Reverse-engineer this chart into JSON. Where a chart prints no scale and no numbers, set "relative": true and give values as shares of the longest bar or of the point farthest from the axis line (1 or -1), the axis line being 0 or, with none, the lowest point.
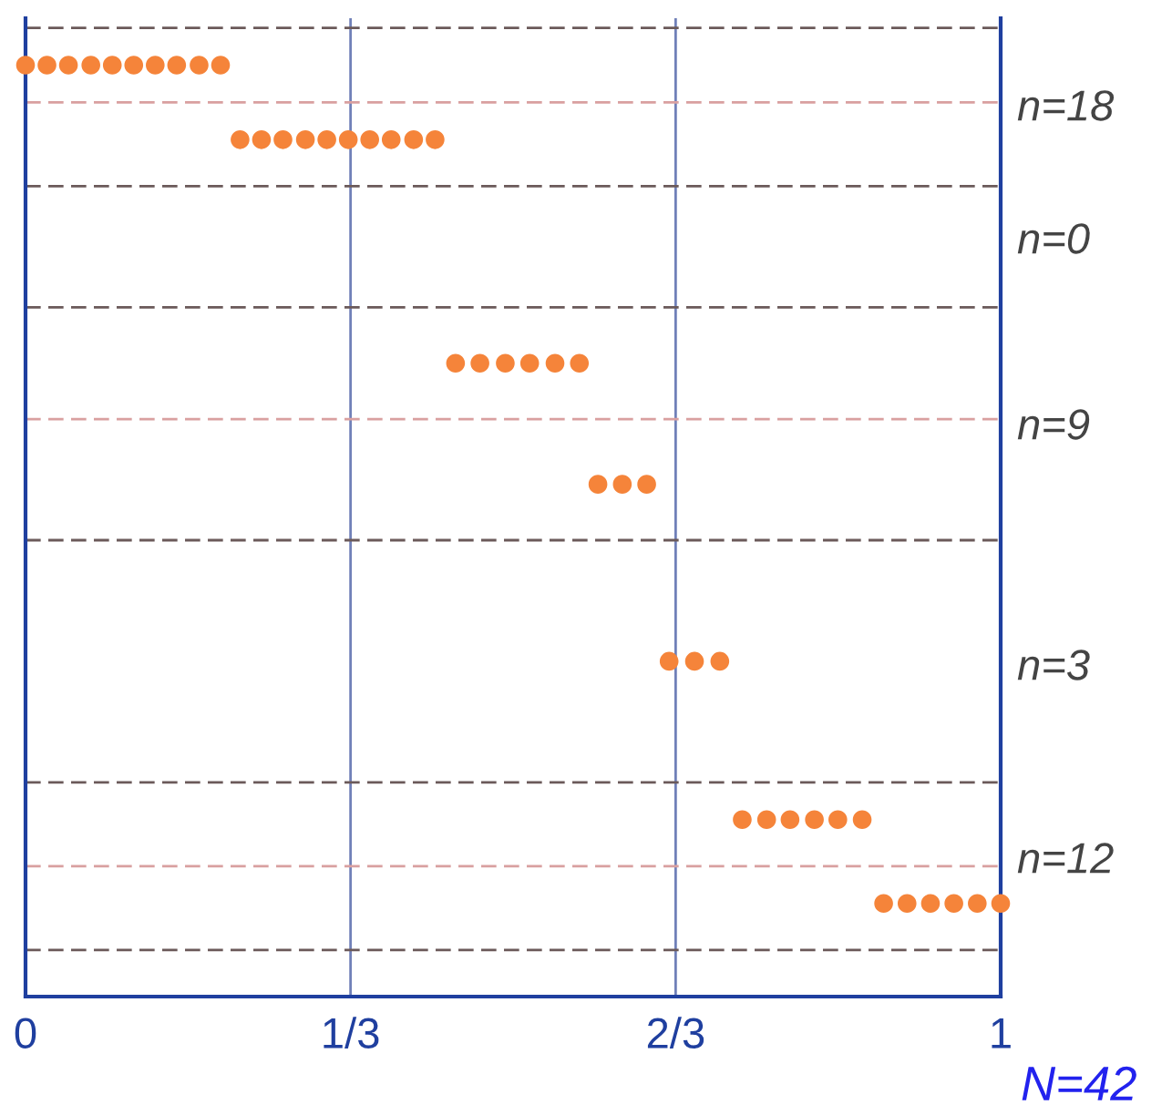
{
  "chart_data": {
    "type": "scatter",
    "relative": true,
    "grid": "x",
    "marker": "circle",
    "xlim": [
      0,
      1
    ],
    "xticks": [
      0,
      {
        "value": 0.3333,
        "label": "1/3"
      },
      {
        "value": 0.6667,
        "label": "2/3"
      },
      1
    ],
    "series": [
      {
        "color": "#f5843a",
        "x": [
          0,
          0.022,
          0.044,
          0.067,
          0.089,
          0.111,
          0.133,
          0.155,
          0.178,
          0.2,
          0.22,
          0.242,
          0.264,
          0.287,
          0.309,
          0.331,
          0.353,
          0.375,
          0.398,
          0.42,
          0.441,
          0.466,
          0.492,
          0.517,
          0.543,
          0.568,
          0.587,
          0.612,
          0.637,
          0.66,
          0.686,
          0.712,
          0.735,
          0.76,
          0.784,
          0.809,
          0.833,
          0.858,
          0.88,
          0.904,
          0.928,
          0.952,
          0.976,
          1.0
        ],
        "values": [
          1,
          1,
          1,
          1,
          1,
          1,
          1,
          1,
          1,
          1,
          0.92,
          0.92,
          0.92,
          0.92,
          0.92,
          0.92,
          0.92,
          0.92,
          0.92,
          0.92,
          0.68,
          0.68,
          0.68,
          0.68,
          0.68,
          0.68,
          0.55,
          0.55,
          0.55,
          0.36,
          0.36,
          0.36,
          0.19,
          0.19,
          0.19,
          0.19,
          0.19,
          0.19,
          0.1,
          0.1,
          0.1,
          0.1,
          0.1,
          0.1
        ]
      }
    ],
    "ref_lines": [
      {
        "axis": "y",
        "value": 1.04,
        "color": "#6b5a5a",
        "line_style": "dashed"
      },
      {
        "axis": "y",
        "value": 0.96,
        "color": "#d9a0a0",
        "line_style": "dashed"
      },
      {
        "axis": "y",
        "value": 0.87,
        "color": "#6b5a5a",
        "line_style": "dashed"
      },
      {
        "axis": "y",
        "value": 0.74,
        "color": "#6b5a5a",
        "line_style": "dashed"
      },
      {
        "axis": "y",
        "value": 0.62,
        "color": "#d9a0a0",
        "line_style": "dashed"
      },
      {
        "axis": "y",
        "value": 0.49,
        "color": "#6b5a5a",
        "line_style": "dashed"
      },
      {
        "axis": "y",
        "value": 0.23,
        "color": "#6b5a5a",
        "line_style": "dashed"
      },
      {
        "axis": "y",
        "value": 0.14,
        "color": "#d9a0a0",
        "line_style": "dashed"
      },
      {
        "axis": "y",
        "value": 0.05,
        "color": "#6b5a5a",
        "line_style": "dashed"
      }
    ],
    "annotations": [
      "n=18",
      "n=0",
      "n=9",
      "n=3",
      "n=12",
      "N=42"
    ]
  }
}
